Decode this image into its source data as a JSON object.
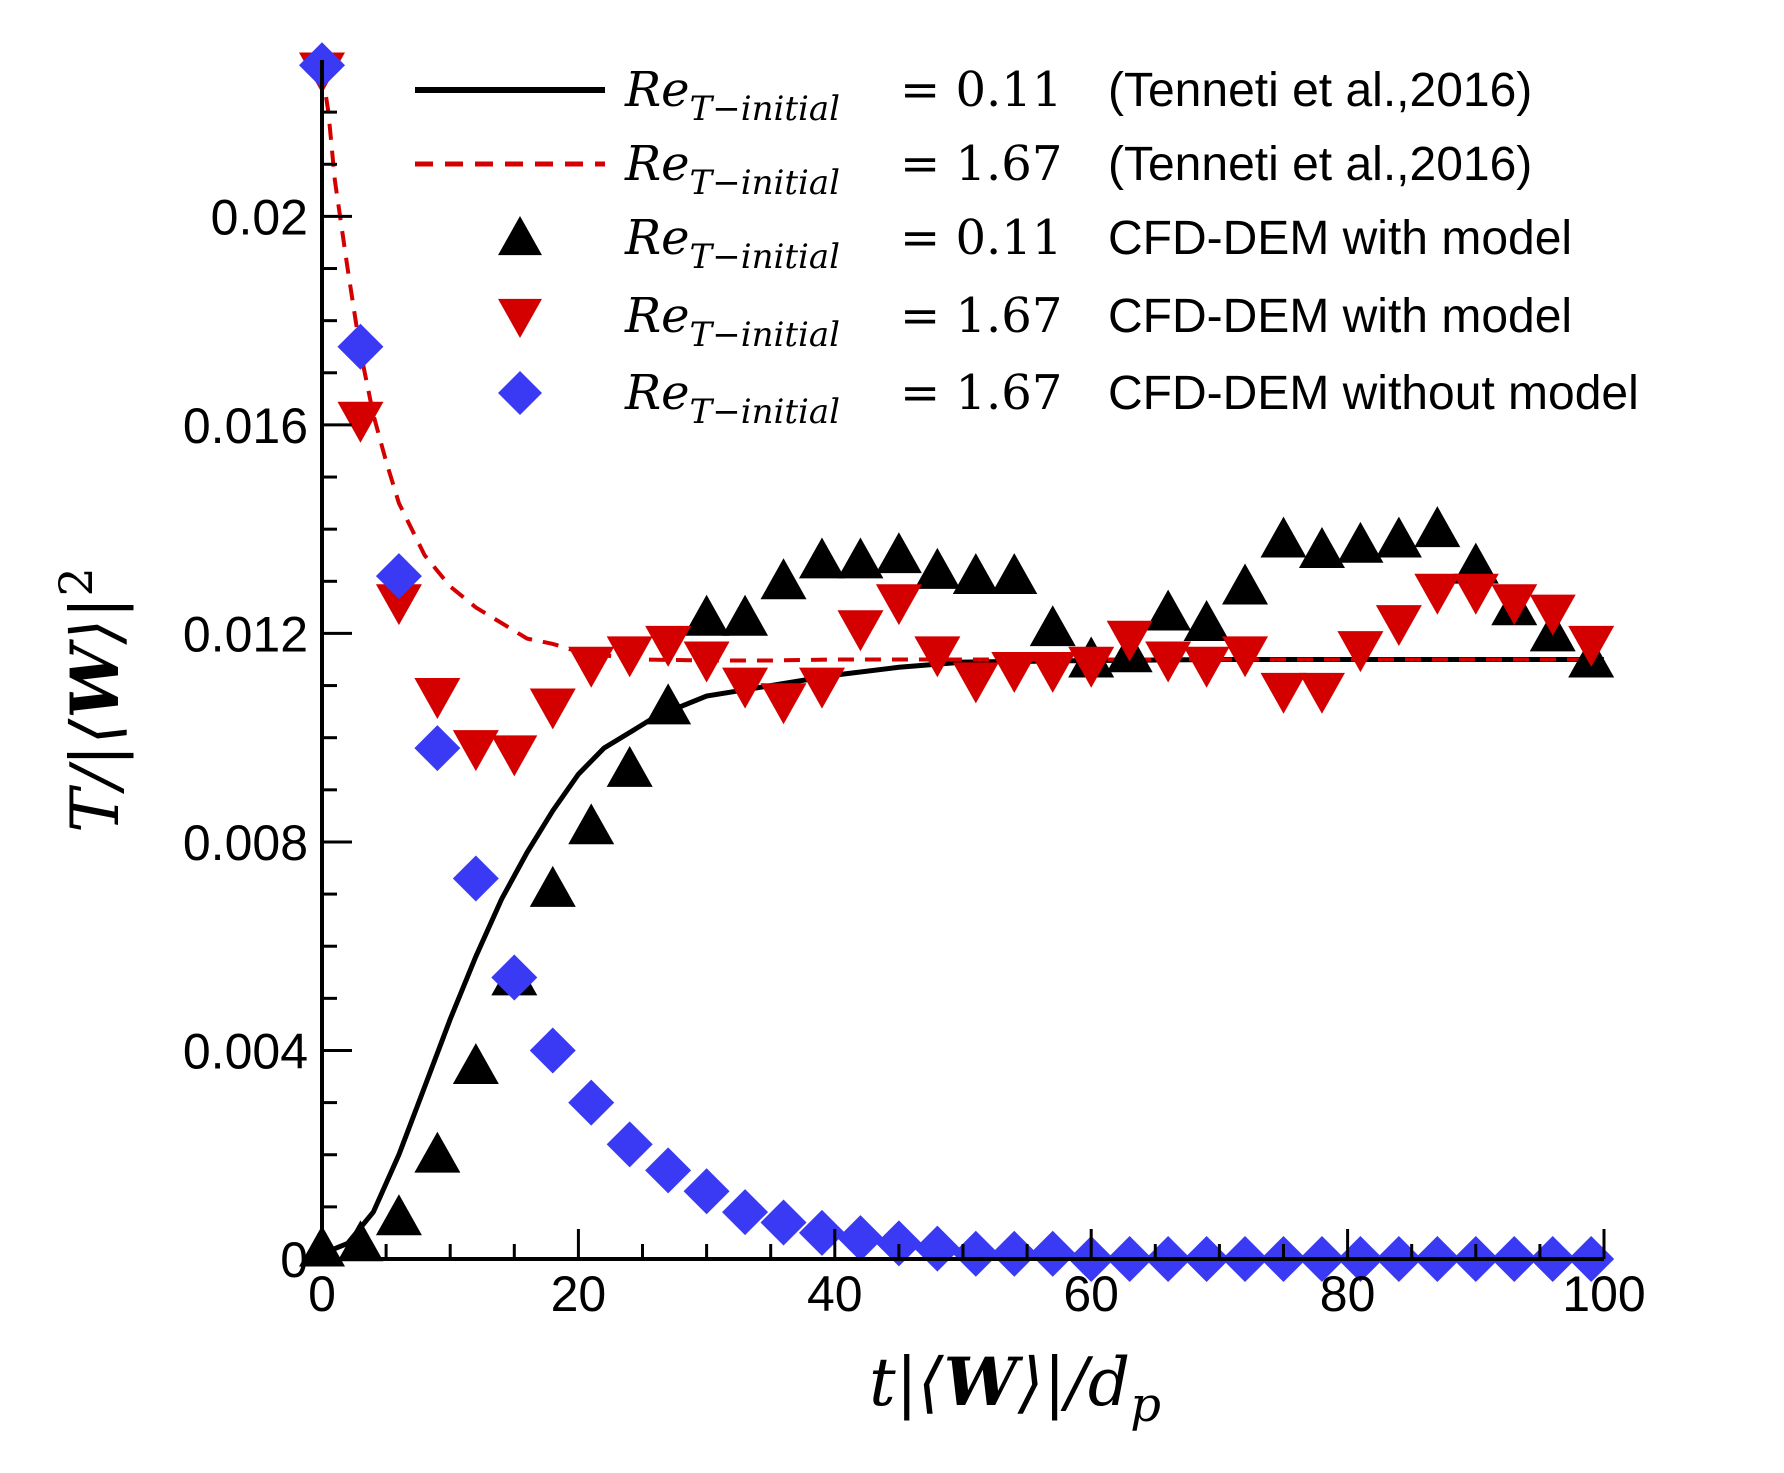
{
  "chart_data": {
    "type": "line+scatter",
    "xlabel": "t|⟨W⟩|/d_p",
    "ylabel": "T/|⟨W⟩|²",
    "xlim": [
      0,
      100
    ],
    "ylim": [
      0,
      0.023
    ],
    "xticks": [
      0,
      20,
      40,
      60,
      80,
      100
    ],
    "xtick_labels": [
      "0",
      "20",
      "40",
      "60",
      "80",
      "100"
    ],
    "yticks": [
      0,
      0.004,
      0.008,
      0.012,
      0.016,
      0.02
    ],
    "ytick_labels": [
      "0",
      "0.004",
      "0.008",
      "0.012",
      "0.016",
      "0.02"
    ],
    "legend_position": "top-right",
    "series": [
      {
        "name": "Re_{T−initial} = 0.11   (Tenneti et al.,2016)",
        "re": "= 0.11",
        "desc": "(Tenneti et al.,2016)",
        "kind": "line",
        "style": "solid",
        "color": "#000000",
        "x": [
          0,
          2,
          4,
          6,
          8,
          10,
          12,
          14,
          16,
          18,
          20,
          22,
          24,
          26,
          28,
          30,
          35,
          40,
          45,
          50,
          60,
          70,
          80,
          90,
          100
        ],
        "y": [
          0.0001,
          0.0003,
          0.0009,
          0.002,
          0.0033,
          0.0046,
          0.0058,
          0.0069,
          0.0078,
          0.0086,
          0.0093,
          0.0098,
          0.0101,
          0.0104,
          0.0106,
          0.0108,
          0.011,
          0.0112,
          0.01135,
          0.01145,
          0.01148,
          0.0115,
          0.0115,
          0.0115,
          0.0115
        ]
      },
      {
        "name": "Re_{T−initial} = 1.67   (Tenneti et al.,2016)",
        "re": "= 1.67",
        "desc": "(Tenneti et al.,2016)",
        "kind": "line",
        "style": "dashed",
        "color": "#d40000",
        "x": [
          0,
          0.5,
          1,
          2,
          3,
          4,
          5,
          6,
          8,
          10,
          12,
          14,
          16,
          18,
          20,
          22,
          25,
          30,
          35,
          40,
          50,
          60,
          70,
          80,
          90,
          100
        ],
        "y": [
          0.0228,
          0.022,
          0.0207,
          0.019,
          0.0174,
          0.0162,
          0.0153,
          0.0145,
          0.0135,
          0.0129,
          0.0125,
          0.0122,
          0.0119,
          0.0118,
          0.01165,
          0.01158,
          0.0115,
          0.01148,
          0.01148,
          0.0115,
          0.0115,
          0.0115,
          0.0115,
          0.0115,
          0.0115,
          0.0115
        ]
      },
      {
        "name": "Re_{T−initial} = 0.11   CFD-DEM with model",
        "re": "= 0.11",
        "desc": "CFD-DEM with model",
        "kind": "scatter",
        "marker": "triangle-up",
        "color": "#000000",
        "x": [
          0,
          3,
          6,
          9,
          12,
          15,
          18,
          21,
          24,
          27,
          30,
          33,
          36,
          39,
          42,
          45,
          48,
          51,
          54,
          57,
          60,
          63,
          66,
          69,
          72,
          75,
          78,
          81,
          84,
          87,
          90,
          93,
          96,
          99
        ],
        "y": [
          0.0002,
          0.0003,
          0.0008,
          0.002,
          0.0037,
          0.0054,
          0.0071,
          0.0083,
          0.0094,
          0.0106,
          0.0123,
          0.0123,
          0.013,
          0.0134,
          0.0134,
          0.0135,
          0.0132,
          0.0131,
          0.0131,
          0.0121,
          0.0115,
          0.0116,
          0.0124,
          0.0122,
          0.0129,
          0.0138,
          0.0136,
          0.0137,
          0.0138,
          0.014,
          0.0133,
          0.0125,
          0.012,
          0.0115
        ]
      },
      {
        "name": "Re_{T−initial} = 1.67   CFD-DEM with model",
        "re": "= 1.67",
        "desc": "CFD-DEM with model",
        "kind": "scatter",
        "marker": "triangle-down",
        "color": "#d40000",
        "x": [
          0,
          3,
          6,
          9,
          12,
          15,
          18,
          21,
          24,
          27,
          30,
          33,
          36,
          39,
          42,
          45,
          48,
          51,
          54,
          57,
          60,
          63,
          66,
          69,
          72,
          75,
          78,
          81,
          84,
          87,
          90,
          93,
          96,
          99
        ],
        "y": [
          0.0228,
          0.0161,
          0.0126,
          0.0108,
          0.0098,
          0.0097,
          0.0106,
          0.0114,
          0.0116,
          0.0118,
          0.0115,
          0.011,
          0.0107,
          0.011,
          0.0121,
          0.0126,
          0.0116,
          0.0111,
          0.0113,
          0.0113,
          0.0114,
          0.0119,
          0.0115,
          0.0114,
          0.0116,
          0.0109,
          0.0109,
          0.0117,
          0.0122,
          0.0128,
          0.0128,
          0.0126,
          0.0124,
          0.0118
        ]
      },
      {
        "name": "Re_{T−initial} = 1.67   CFD-DEM without model",
        "re": "= 1.67",
        "desc": "CFD-DEM without model",
        "kind": "scatter",
        "marker": "diamond",
        "color": "#3a3af5",
        "x": [
          0,
          3,
          6,
          9,
          12,
          15,
          18,
          21,
          24,
          27,
          30,
          33,
          36,
          39,
          42,
          45,
          48,
          51,
          54,
          57,
          60,
          63,
          66,
          69,
          72,
          75,
          78,
          81,
          84,
          87,
          90,
          93,
          96,
          99
        ],
        "y": [
          0.0229,
          0.0175,
          0.0131,
          0.0098,
          0.0073,
          0.0054,
          0.004,
          0.003,
          0.0022,
          0.0017,
          0.0013,
          0.0009,
          0.0007,
          0.0005,
          0.0004,
          0.0003,
          0.0002,
          0.0001,
          0.0001,
          0.0001,
          0.0,
          0.0,
          0.0,
          0.0,
          0.0,
          0.0,
          0.0,
          0.0,
          0.0,
          0.0,
          0.0,
          0.0,
          0.0,
          0.0
        ]
      }
    ]
  }
}
